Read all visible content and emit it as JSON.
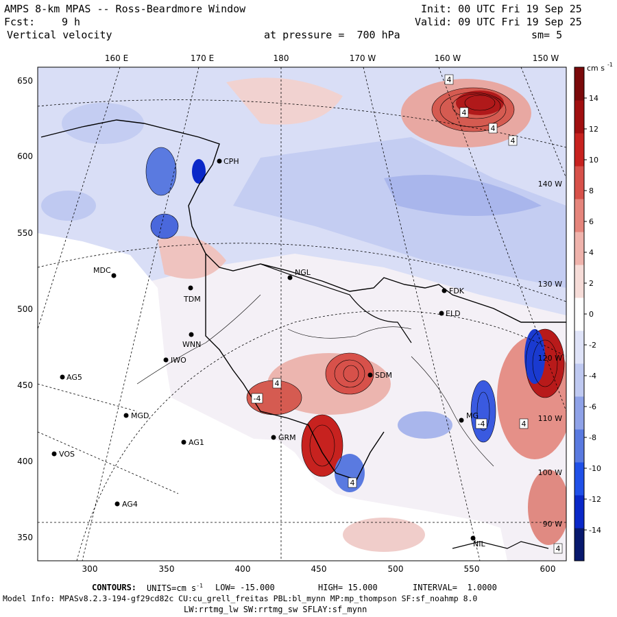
{
  "header": {
    "title": "AMPS 8-km MPAS -- Ross-Beardmore Window",
    "init": "Init: 00 UTC Fri 19 Sep 25",
    "fcst_label": "Fcst:",
    "fcst_value": "9 h",
    "valid": "Valid: 09 UTC Fri 19 Sep 25",
    "field": "Vertical velocity",
    "pressure": "at pressure =  700 hPa",
    "smoothing": "sm= 5"
  },
  "map": {
    "longitude_labels_top": [
      "160 E",
      "170 E",
      "180",
      "170 W",
      "160 W",
      "150 W"
    ],
    "longitude_labels_inside": [
      "140 W",
      "130 W",
      "120 W",
      "110 W",
      "100 W",
      "90 W"
    ],
    "x_ticks": [
      "300",
      "350",
      "400",
      "450",
      "500",
      "550",
      "600"
    ],
    "y_ticks": [
      "650",
      "600",
      "550",
      "500",
      "450",
      "400",
      "350"
    ],
    "stations": [
      "CPH",
      "MDC",
      "TDM",
      "NGL",
      "WNN",
      "IWO",
      "AG5",
      "MGD",
      "AG1",
      "VOS",
      "AG4",
      "FDK",
      "ELD",
      "SDM",
      "GRM",
      "MG",
      "NIL"
    ],
    "contour_labels": [
      "4",
      "4",
      "4",
      "4",
      "4",
      "-4",
      "4",
      "4",
      "-4",
      "4"
    ]
  },
  "colorbar": {
    "units": "cm s",
    "units_exp": "-1",
    "ticks": [
      "14",
      "12",
      "10",
      "8",
      "6",
      "4",
      "2",
      "0",
      "-2",
      "-4",
      "-6",
      "-8",
      "-10",
      "-12",
      "-14"
    ],
    "colors": [
      "#08196e",
      "#0a28c8",
      "#2050e8",
      "#5a7ae0",
      "#8fa2e8",
      "#bfc9f1",
      "#dfe3f8",
      "#ffffff",
      "#f6dcd8",
      "#efb3ac",
      "#e5857c",
      "#d7514a",
      "#c7221f",
      "#a00f10",
      "#7a0a0b"
    ]
  },
  "footer": {
    "contours_label": "CONTOURS:",
    "units_label": "UNITS=cm s",
    "units_exp": "-1",
    "low": "LOW= -15.000",
    "high": "HIGH= 15.000",
    "interval": "INTERVAL=  1.0000",
    "model_info": "Model Info: MPASv8.2.3-194-gf29cd82c CU:cu_grell_freitas PBL:bl_mynn MP:mp_thompson SF:sf_noahmp 8.0",
    "physics": "LW:rrtmg_lw SW:rrtmg_sw SFLAY:sf_mynn"
  }
}
